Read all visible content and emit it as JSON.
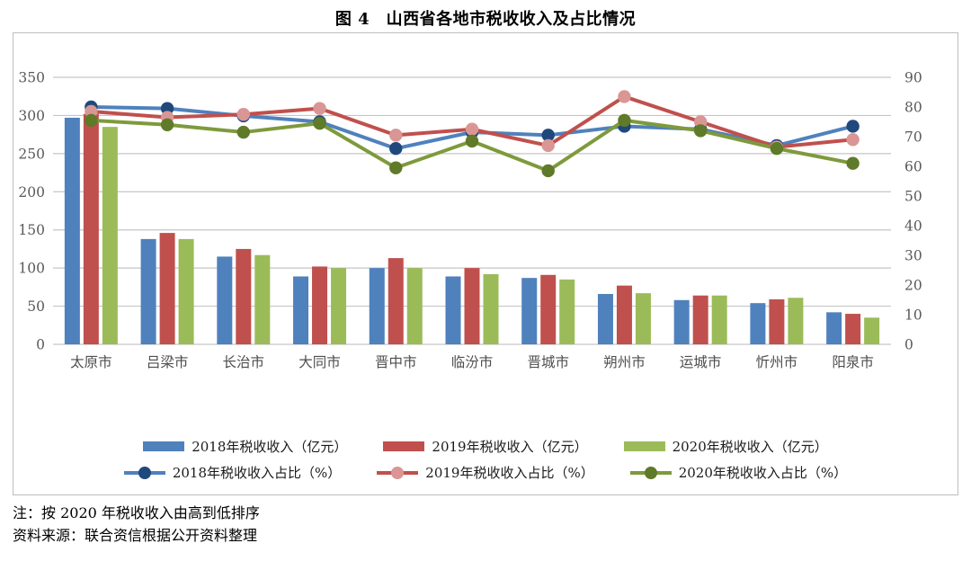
{
  "title": "图 4　山西省各地市税收收入及占比情况",
  "notes": {
    "note": "注：按 2020 年税收收入由高到低排序",
    "source": "资料来源：联合资信根据公开资料整理"
  },
  "colors": {
    "bar_2018": "#4F81BD",
    "bar_2019": "#C0504D",
    "bar_2020": "#9BBB59",
    "line_2018": "#4F81BD",
    "line_2019": "#C0504D",
    "line_2020": "#7E9A3C",
    "marker_2018": "#1F497D",
    "marker_2019": "#D99694",
    "marker_2020": "#5F7A28",
    "gridline": "#C6C6C6",
    "axis_text": "#595959",
    "chart_border": "#BDBDBD"
  },
  "chart_data": {
    "type": "bar",
    "subtype": "combo-bar-line-dual-axis",
    "title": "图 4　山西省各地市税收收入及占比情况",
    "categories": [
      "太原市",
      "吕梁市",
      "长治市",
      "大同市",
      "晋中市",
      "临汾市",
      "晋城市",
      "朔州市",
      "运城市",
      "忻州市",
      "阳泉市"
    ],
    "left_axis": {
      "unit": "亿元",
      "min": 0,
      "max": 350,
      "ticks": [
        0,
        50,
        100,
        150,
        200,
        250,
        300,
        350
      ]
    },
    "right_axis": {
      "unit": "%",
      "min": 0,
      "max": 90,
      "ticks": [
        0,
        10,
        20,
        30,
        40,
        50,
        60,
        70,
        80,
        90
      ]
    },
    "grid": true,
    "legend_position": "bottom",
    "series": [
      {
        "name": "2018年税收收入（亿元）",
        "kind": "bar",
        "axis": "left",
        "color": "#4F81BD",
        "values": [
          297,
          138,
          115,
          89,
          100,
          89,
          87,
          66,
          58,
          54,
          42
        ]
      },
      {
        "name": "2019年税收收入（亿元）",
        "kind": "bar",
        "axis": "left",
        "color": "#C0504D",
        "values": [
          302,
          146,
          125,
          102,
          113,
          100,
          91,
          77,
          64,
          59,
          40
        ]
      },
      {
        "name": "2020年税收收入（亿元）",
        "kind": "bar",
        "axis": "left",
        "color": "#9BBB59",
        "values": [
          285,
          138,
          117,
          100,
          100,
          92,
          85,
          67,
          64,
          61,
          35
        ]
      },
      {
        "name": "2018年税收收入占比（%）",
        "kind": "line",
        "axis": "right",
        "color": "#4F81BD",
        "marker_color": "#1F497D",
        "values": [
          80,
          79.5,
          77,
          75,
          66,
          71.5,
          70.5,
          73.5,
          72.5,
          67,
          73.5
        ]
      },
      {
        "name": "2019年税收收入占比（%）",
        "kind": "line",
        "axis": "right",
        "color": "#C0504D",
        "marker_color": "#D99694",
        "values": [
          78.5,
          76.5,
          77.5,
          79.5,
          70.5,
          72.5,
          67,
          83.5,
          75,
          66.5,
          69
        ]
      },
      {
        "name": "2020年税收收入占比（%）",
        "kind": "line",
        "axis": "right",
        "color": "#7E9A3C",
        "marker_color": "#5F7A28",
        "values": [
          75.5,
          74,
          71.5,
          74.5,
          59.5,
          68.5,
          58.5,
          75.5,
          72,
          66,
          61
        ]
      }
    ]
  }
}
